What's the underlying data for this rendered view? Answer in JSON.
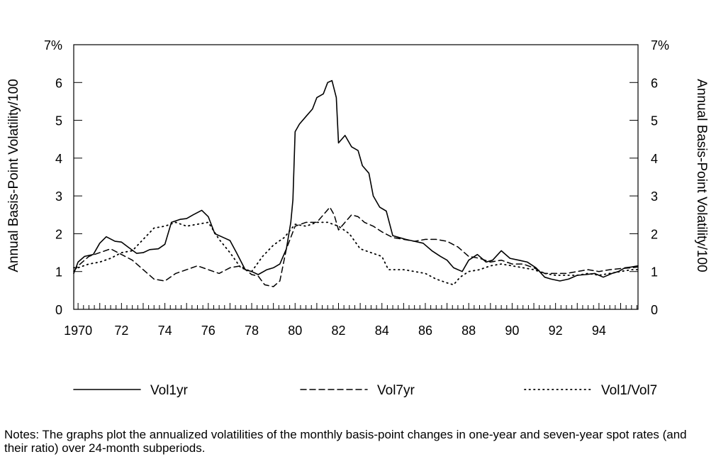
{
  "chart_data": {
    "type": "line",
    "title": "",
    "ylabel_left": "Annual Basis-Point Volatility/100",
    "ylabel_right": "Annual Basis-Point Volatility/100",
    "xlim": [
      1969.8,
      1995.8
    ],
    "ylim": [
      0,
      7
    ],
    "y_ticks": [
      {
        "value": 0,
        "label": "0"
      },
      {
        "value": 1,
        "label": "1"
      },
      {
        "value": 2,
        "label": "2"
      },
      {
        "value": 3,
        "label": "3"
      },
      {
        "value": 4,
        "label": "4"
      },
      {
        "value": 5,
        "label": "5"
      },
      {
        "value": 6,
        "label": "6"
      },
      {
        "value": 7,
        "label": "7%"
      }
    ],
    "x_ticks": [
      {
        "value": 1970,
        "label": "1970"
      },
      {
        "value": 1972,
        "label": "72"
      },
      {
        "value": 1974,
        "label": "74"
      },
      {
        "value": 1976,
        "label": "76"
      },
      {
        "value": 1978,
        "label": "78"
      },
      {
        "value": 1980,
        "label": "80"
      },
      {
        "value": 1982,
        "label": "82"
      },
      {
        "value": 1984,
        "label": "84"
      },
      {
        "value": 1986,
        "label": "86"
      },
      {
        "value": 1988,
        "label": "88"
      },
      {
        "value": 1990,
        "label": "90"
      },
      {
        "value": 1992,
        "label": "92"
      },
      {
        "value": 1994,
        "label": "94"
      }
    ],
    "legend_position": "bottom",
    "series": [
      {
        "name": "Vol1yr",
        "style": "solid",
        "x": [
          1969.8,
          1970.0,
          1970.3,
          1970.7,
          1971.0,
          1971.3,
          1971.7,
          1972.0,
          1972.3,
          1972.7,
          1973.0,
          1973.3,
          1973.7,
          1974.0,
          1974.3,
          1974.7,
          1975.0,
          1975.3,
          1975.7,
          1976.0,
          1976.3,
          1976.7,
          1977.0,
          1977.3,
          1977.7,
          1978.0,
          1978.3,
          1978.7,
          1979.0,
          1979.3,
          1979.6,
          1979.8,
          1979.9,
          1980.0,
          1980.2,
          1980.5,
          1980.8,
          1981.0,
          1981.3,
          1981.5,
          1981.7,
          1981.9,
          1982.0,
          1982.3,
          1982.6,
          1982.9,
          1983.1,
          1983.4,
          1983.6,
          1983.9,
          1984.2,
          1984.5,
          1984.8,
          1985.1,
          1985.5,
          1985.9,
          1986.3,
          1986.7,
          1987.0,
          1987.3,
          1987.7,
          1988.0,
          1988.4,
          1988.8,
          1989.1,
          1989.5,
          1989.9,
          1990.3,
          1990.7,
          1991.1,
          1991.5,
          1991.8,
          1992.2,
          1992.6,
          1993.0,
          1993.4,
          1993.8,
          1994.2,
          1994.6,
          1994.9,
          1995.2,
          1995.5,
          1995.8
        ],
        "values": [
          0.95,
          1.25,
          1.4,
          1.45,
          1.75,
          1.92,
          1.8,
          1.78,
          1.65,
          1.48,
          1.5,
          1.58,
          1.6,
          1.72,
          2.3,
          2.38,
          2.4,
          2.5,
          2.62,
          2.45,
          2.0,
          1.9,
          1.82,
          1.5,
          1.05,
          1.0,
          0.92,
          1.05,
          1.1,
          1.2,
          1.6,
          2.3,
          2.9,
          4.7,
          4.9,
          5.1,
          5.3,
          5.6,
          5.7,
          6.0,
          6.05,
          5.6,
          4.4,
          4.6,
          4.3,
          4.2,
          3.8,
          3.6,
          3.0,
          2.7,
          2.6,
          1.95,
          1.9,
          1.85,
          1.8,
          1.75,
          1.55,
          1.4,
          1.3,
          1.1,
          1.0,
          1.3,
          1.45,
          1.25,
          1.3,
          1.55,
          1.35,
          1.3,
          1.25,
          1.1,
          0.85,
          0.8,
          0.75,
          0.8,
          0.9,
          0.92,
          0.95,
          0.85,
          0.95,
          1.0,
          1.1,
          1.12,
          1.15
        ]
      },
      {
        "name": "Vol7yr",
        "style": "dashed",
        "x": [
          1969.8,
          1970.0,
          1970.5,
          1971.0,
          1971.5,
          1972.0,
          1972.5,
          1973.0,
          1973.5,
          1974.0,
          1974.5,
          1975.0,
          1975.5,
          1976.0,
          1976.5,
          1977.0,
          1977.5,
          1978.0,
          1978.3,
          1978.6,
          1979.0,
          1979.3,
          1979.6,
          1980.0,
          1980.5,
          1981.0,
          1981.3,
          1981.6,
          1981.8,
          1982.0,
          1982.3,
          1982.6,
          1982.9,
          1983.2,
          1983.6,
          1984.0,
          1984.5,
          1985.0,
          1985.5,
          1986.0,
          1986.5,
          1987.0,
          1987.5,
          1988.0,
          1988.5,
          1989.0,
          1989.5,
          1990.0,
          1990.5,
          1991.0,
          1991.5,
          1992.0,
          1992.5,
          1993.0,
          1993.5,
          1994.0,
          1994.5,
          1995.0,
          1995.5,
          1995.8
        ],
        "values": [
          1.0,
          1.15,
          1.4,
          1.5,
          1.6,
          1.45,
          1.3,
          1.05,
          0.8,
          0.75,
          0.95,
          1.05,
          1.15,
          1.05,
          0.95,
          1.1,
          1.15,
          0.92,
          0.88,
          0.65,
          0.6,
          0.75,
          1.6,
          2.2,
          2.3,
          2.3,
          2.5,
          2.7,
          2.5,
          2.1,
          2.3,
          2.5,
          2.45,
          2.3,
          2.2,
          2.05,
          1.9,
          1.85,
          1.8,
          1.85,
          1.85,
          1.8,
          1.65,
          1.4,
          1.35,
          1.25,
          1.3,
          1.2,
          1.2,
          1.1,
          0.95,
          0.95,
          0.95,
          1.0,
          1.05,
          1.0,
          1.05,
          1.08,
          1.1,
          1.12
        ]
      },
      {
        "name": "Vol1/Vol7",
        "style": "dotted",
        "x": [
          1969.8,
          1970.0,
          1970.5,
          1971.0,
          1971.5,
          1972.0,
          1972.5,
          1973.0,
          1973.5,
          1974.0,
          1974.5,
          1975.0,
          1975.5,
          1976.0,
          1976.5,
          1977.0,
          1977.5,
          1978.0,
          1978.5,
          1979.0,
          1979.5,
          1980.0,
          1980.5,
          1981.0,
          1981.5,
          1982.0,
          1982.5,
          1983.0,
          1983.5,
          1984.0,
          1984.3,
          1984.6,
          1985.0,
          1985.5,
          1986.0,
          1986.5,
          1987.0,
          1987.3,
          1987.6,
          1988.0,
          1988.5,
          1989.0,
          1989.5,
          1990.0,
          1990.5,
          1991.0,
          1991.5,
          1992.0,
          1992.5,
          1993.0,
          1993.5,
          1994.0,
          1994.5,
          1995.0,
          1995.5,
          1995.8
        ],
        "values": [
          1.1,
          1.1,
          1.2,
          1.25,
          1.35,
          1.5,
          1.55,
          1.85,
          2.15,
          2.2,
          2.3,
          2.2,
          2.25,
          2.3,
          1.85,
          1.5,
          1.1,
          1.0,
          1.4,
          1.7,
          1.9,
          2.25,
          2.2,
          2.3,
          2.3,
          2.2,
          2.0,
          1.6,
          1.5,
          1.4,
          1.05,
          1.05,
          1.05,
          1.0,
          0.95,
          0.8,
          0.7,
          0.65,
          0.85,
          1.0,
          1.05,
          1.15,
          1.2,
          1.15,
          1.1,
          1.05,
          0.95,
          0.9,
          0.9,
          0.9,
          0.95,
          0.9,
          0.95,
          1.0,
          1.05,
          1.05
        ]
      }
    ]
  },
  "legend": [
    {
      "label": "Vol1yr",
      "style": "solid"
    },
    {
      "label": "Vol7yr",
      "style": "dashed"
    },
    {
      "label": "Vol1/Vol7",
      "style": "dotted"
    }
  ],
  "notes": "Notes: The graphs plot the annualized volatilities of the monthly basis-point changes in one-year and seven-year spot rates (and their ratio) over 24-month subperiods."
}
